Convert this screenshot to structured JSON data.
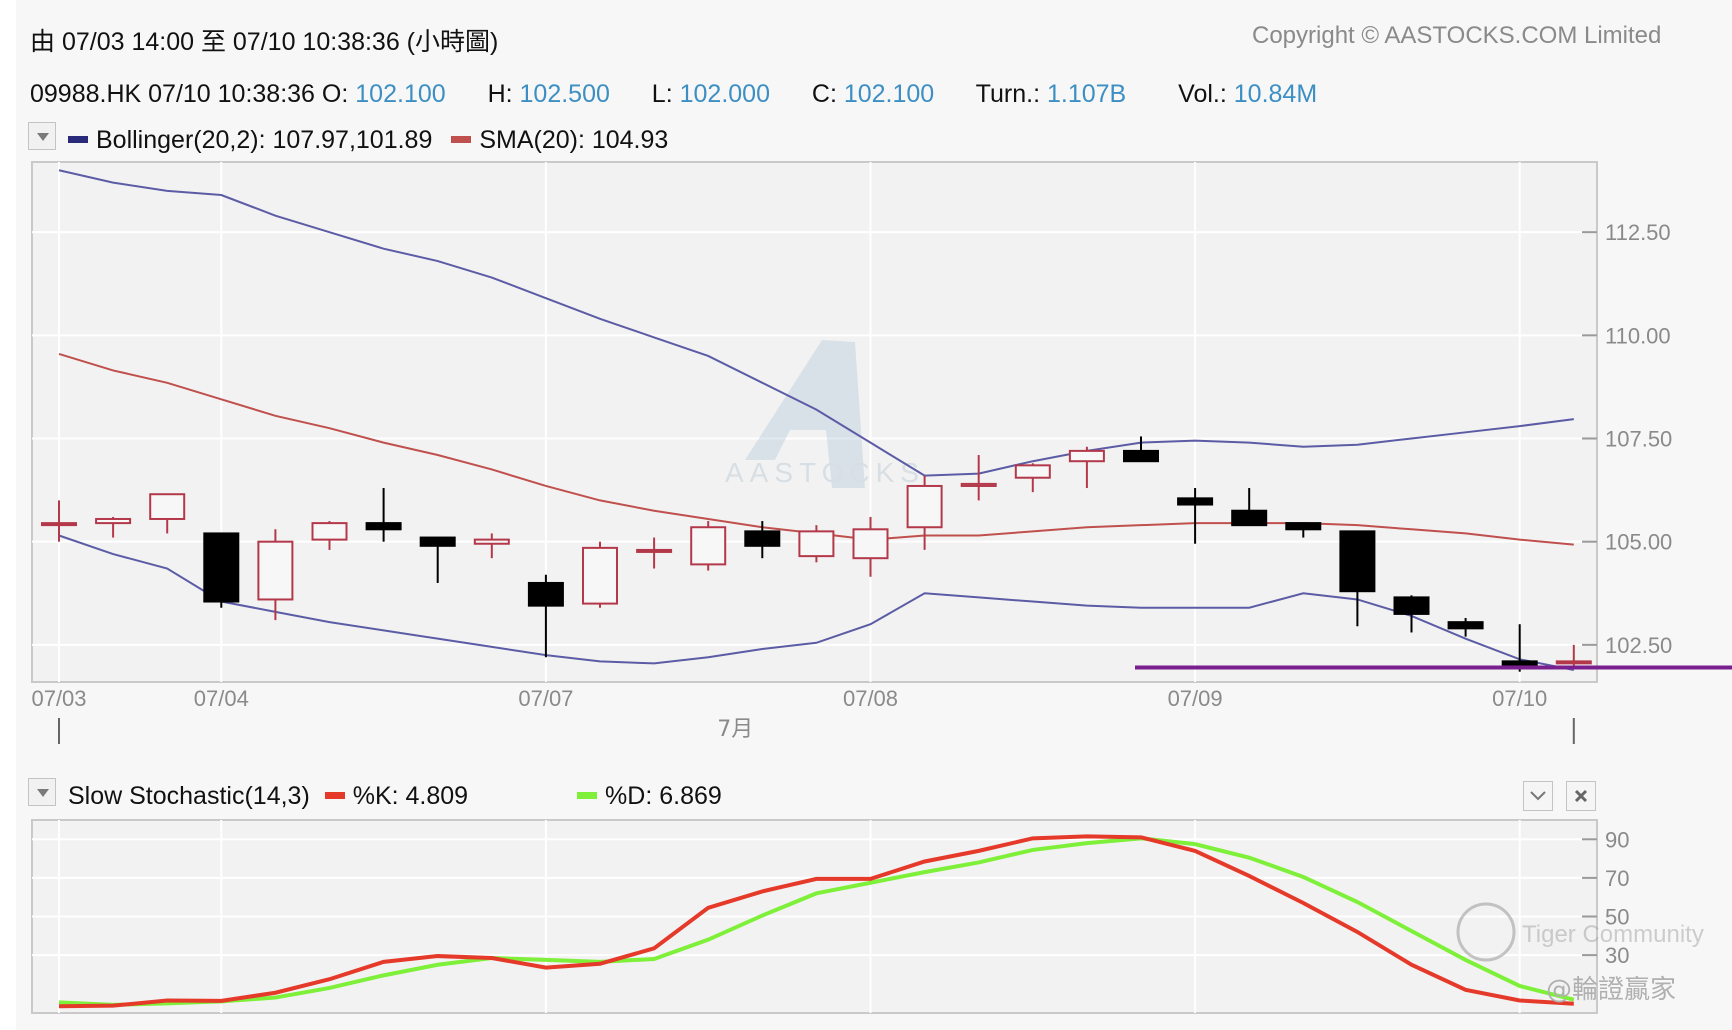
{
  "header": {
    "range": "由  07/03 14:00 至  07/10 10:38:36 (小時圖)",
    "copyright": "Copyright © AASTOCKS.COM Limited"
  },
  "quote": {
    "symbol_time": "09988.HK 07/10 10:38:36",
    "open_label": "O:",
    "open": "102.100",
    "high_label": "H:",
    "high": "102.500",
    "low_label": "L:",
    "low": "102.000",
    "close_label": "C:",
    "close": "102.100",
    "turn_label": "Turn.:",
    "turn": "1.107B",
    "vol_label": "Vol.:",
    "vol": "10.84M"
  },
  "main_legend": {
    "bollinger": "Bollinger(20,2): 107.97,101.89",
    "sma": "SMA(20): 104.93"
  },
  "stoch_legend": {
    "title": "Slow Stochastic(14,3)",
    "k": "%K: 4.809",
    "d": "%D: 6.869"
  },
  "watermarks": {
    "chart_logo": "AASTOCKS",
    "community": "Tiger Community",
    "author": "@輪證贏家"
  },
  "colors": {
    "bollinger": "#2a2a7a",
    "bollinger_line": "#5c5ca6",
    "sma": "#c0504d",
    "up_candle": "#b3394a",
    "down_candle": "#000000",
    "k": "#e53a2a",
    "d": "#7ff03a",
    "support_line": "#7a1f8e",
    "value_text": "#3d8fc3"
  },
  "chart_data": [
    {
      "type": "candlestick",
      "title": "09988.HK hourly",
      "x_tick_labels": [
        "07/03",
        "07/04",
        "07/07",
        "07/08",
        "07/09",
        "07/10"
      ],
      "x_tick_index": [
        0,
        3,
        9,
        15,
        21,
        27
      ],
      "month_label": "7月",
      "y_ticks": [
        102.5,
        105.0,
        107.5,
        110.0,
        112.5
      ],
      "y_tick_labels": [
        "102.50",
        "105.00",
        "107.50",
        "110.00",
        "112.50"
      ],
      "ylim": [
        101.6,
        114.2
      ],
      "candles": [
        {
          "o": 105.45,
          "h": 106.0,
          "l": 105.0,
          "c": 105.45
        },
        {
          "o": 105.45,
          "h": 105.6,
          "l": 105.1,
          "c": 105.55
        },
        {
          "o": 105.55,
          "h": 106.15,
          "l": 105.2,
          "c": 106.15
        },
        {
          "o": 105.2,
          "h": 105.2,
          "l": 103.4,
          "c": 103.55
        },
        {
          "o": 103.6,
          "h": 105.3,
          "l": 103.1,
          "c": 105.0
        },
        {
          "o": 105.05,
          "h": 105.5,
          "l": 104.8,
          "c": 105.45
        },
        {
          "o": 105.45,
          "h": 106.3,
          "l": 105.0,
          "c": 105.3
        },
        {
          "o": 105.1,
          "h": 105.1,
          "l": 104.0,
          "c": 104.9
        },
        {
          "o": 104.95,
          "h": 105.2,
          "l": 104.6,
          "c": 105.05
        },
        {
          "o": 104.0,
          "h": 104.2,
          "l": 102.2,
          "c": 103.45
        },
        {
          "o": 103.5,
          "h": 105.0,
          "l": 103.4,
          "c": 104.85
        },
        {
          "o": 104.8,
          "h": 105.1,
          "l": 104.35,
          "c": 104.8
        },
        {
          "o": 104.45,
          "h": 105.5,
          "l": 104.3,
          "c": 105.35
        },
        {
          "o": 105.25,
          "h": 105.5,
          "l": 104.6,
          "c": 104.9
        },
        {
          "o": 104.65,
          "h": 105.4,
          "l": 104.5,
          "c": 105.25
        },
        {
          "o": 104.6,
          "h": 105.6,
          "l": 104.15,
          "c": 105.3
        },
        {
          "o": 105.35,
          "h": 106.6,
          "l": 104.8,
          "c": 106.35
        },
        {
          "o": 106.35,
          "h": 107.1,
          "l": 106.0,
          "c": 106.4
        },
        {
          "o": 106.55,
          "h": 106.9,
          "l": 106.2,
          "c": 106.85
        },
        {
          "o": 106.95,
          "h": 107.3,
          "l": 106.3,
          "c": 107.2
        },
        {
          "o": 107.2,
          "h": 107.55,
          "l": 106.95,
          "c": 106.95
        },
        {
          "o": 106.05,
          "h": 106.3,
          "l": 104.95,
          "c": 105.9
        },
        {
          "o": 105.75,
          "h": 106.3,
          "l": 105.4,
          "c": 105.4
        },
        {
          "o": 105.45,
          "h": 105.45,
          "l": 105.1,
          "c": 105.3
        },
        {
          "o": 105.25,
          "h": 105.25,
          "l": 102.95,
          "c": 103.8
        },
        {
          "o": 103.65,
          "h": 103.7,
          "l": 102.8,
          "c": 103.25
        },
        {
          "o": 103.05,
          "h": 103.15,
          "l": 102.7,
          "c": 102.9
        },
        {
          "o": 102.1,
          "h": 103.0,
          "l": 101.85,
          "c": 102.0
        },
        {
          "o": 102.1,
          "h": 102.5,
          "l": 102.0,
          "c": 102.1
        }
      ],
      "series": [
        {
          "name": "Bollinger upper",
          "values": [
            114.0,
            113.7,
            113.5,
            113.4,
            112.9,
            112.5,
            112.1,
            111.8,
            111.4,
            110.9,
            110.4,
            109.95,
            109.5,
            108.85,
            108.2,
            107.4,
            106.6,
            106.65,
            106.95,
            107.2,
            107.4,
            107.45,
            107.4,
            107.3,
            107.35,
            107.5,
            107.65,
            107.8,
            107.97
          ]
        },
        {
          "name": "SMA(20)",
          "values": [
            109.55,
            109.15,
            108.85,
            108.45,
            108.05,
            107.75,
            107.4,
            107.1,
            106.75,
            106.35,
            106.0,
            105.75,
            105.55,
            105.35,
            105.2,
            105.05,
            105.15,
            105.15,
            105.25,
            105.35,
            105.4,
            105.45,
            105.45,
            105.45,
            105.4,
            105.3,
            105.2,
            105.05,
            104.93
          ]
        },
        {
          "name": "Bollinger lower",
          "values": [
            105.15,
            104.7,
            104.35,
            103.55,
            103.3,
            103.05,
            102.85,
            102.65,
            102.45,
            102.25,
            102.1,
            102.05,
            102.2,
            102.4,
            102.55,
            103.0,
            103.75,
            103.65,
            103.55,
            103.45,
            103.4,
            103.4,
            103.4,
            103.75,
            103.6,
            103.2,
            102.65,
            102.15,
            101.89
          ]
        }
      ],
      "support_level": 101.95
    },
    {
      "type": "line",
      "title": "Slow Stochastic(14,3)",
      "y_ticks": [
        30,
        50,
        70,
        90
      ],
      "y_tick_labels": [
        "30",
        "50",
        "70",
        "90"
      ],
      "ylim": [
        0,
        100
      ],
      "series": [
        {
          "name": "%K",
          "values": [
            3.5,
            3.8,
            6.5,
            6.3,
            10.5,
            17.5,
            26.5,
            29.5,
            28.5,
            23.5,
            25.5,
            33.5,
            54.5,
            63.0,
            69.5,
            69.5,
            78.5,
            84.0,
            90.5,
            91.5,
            91.0,
            84.0,
            71.0,
            57.0,
            42.0,
            25.0,
            12.0,
            6.5,
            4.809
          ]
        },
        {
          "name": "%D",
          "values": [
            5.5,
            4.2,
            5.0,
            6.0,
            8.0,
            13.0,
            19.5,
            25.0,
            28.5,
            27.5,
            26.5,
            28.0,
            38.0,
            50.5,
            62.0,
            67.5,
            73.0,
            78.0,
            84.5,
            88.0,
            90.5,
            87.5,
            80.5,
            70.5,
            57.5,
            42.5,
            27.5,
            14.0,
            6.869
          ]
        }
      ]
    }
  ]
}
